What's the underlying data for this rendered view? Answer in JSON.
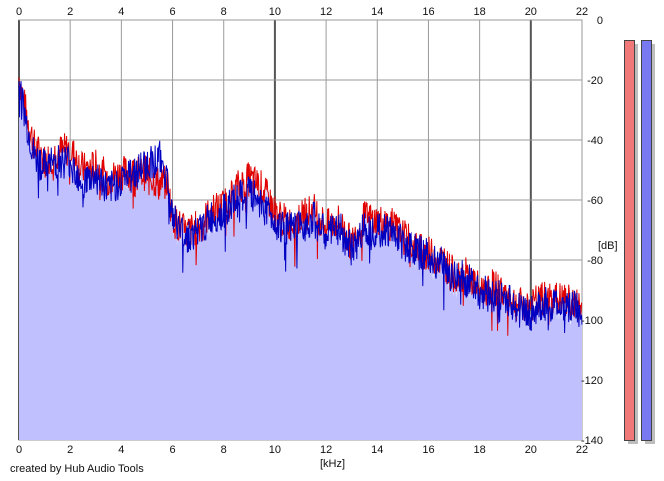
{
  "chart_data": {
    "type": "area",
    "xlabel": "[kHz]",
    "ylabel": "[dB]",
    "xlim": [
      0,
      22
    ],
    "ylim": [
      -140,
      0
    ],
    "x_ticks": [
      "0",
      "2",
      "4",
      "6",
      "8",
      "10",
      "12",
      "14",
      "16",
      "18",
      "20",
      "22"
    ],
    "y_ticks": [
      "0",
      "-20",
      "-40",
      "-60",
      "-80",
      "-100",
      "-120",
      "-140"
    ],
    "grid": true,
    "series": [
      {
        "color": "#e00000",
        "x": [
          0,
          0.3,
          0.6,
          1,
          1.5,
          2,
          2.5,
          3,
          3.5,
          4,
          4.5,
          5,
          5.5,
          5.8,
          6,
          6.5,
          7,
          7.5,
          8,
          8.5,
          9,
          9.5,
          10,
          10.5,
          11,
          11.5,
          12,
          12.5,
          13,
          13.5,
          14,
          14.5,
          15,
          15.5,
          16,
          16.5,
          17,
          17.5,
          18,
          18.5,
          19,
          19.5,
          20,
          20.5,
          21,
          21.5,
          22
        ],
        "values": [
          -19,
          -32,
          -42,
          -47,
          -44,
          -43,
          -50,
          -49,
          -53,
          -51,
          -51,
          -51,
          -55,
          -54,
          -66,
          -71,
          -69,
          -64,
          -62,
          -56,
          -53,
          -56,
          -64,
          -68,
          -66,
          -63,
          -69,
          -67,
          -75,
          -66,
          -67,
          -68,
          -72,
          -76,
          -78,
          -80,
          -85,
          -85,
          -90,
          -89,
          -91,
          -95,
          -95,
          -93,
          -93,
          -94,
          -96
        ]
      },
      {
        "color": "#0000c0",
        "x": [
          0,
          0.3,
          0.6,
          1,
          1.5,
          2,
          2.5,
          3,
          3.5,
          4,
          4.5,
          5,
          5.5,
          5.8,
          6,
          6.5,
          7,
          7.5,
          8,
          8.5,
          9,
          9.5,
          10,
          10.5,
          11,
          11.5,
          12,
          12.5,
          13,
          13.5,
          14,
          14.5,
          15,
          15.5,
          16,
          16.5,
          17,
          17.5,
          18,
          18.5,
          19,
          19.5,
          20,
          20.5,
          21,
          21.5,
          22
        ],
        "values": [
          -21,
          -35,
          -46,
          -49,
          -47,
          -47,
          -54,
          -52,
          -57,
          -53,
          -51,
          -48,
          -46,
          -53,
          -66,
          -72,
          -71,
          -66,
          -64,
          -60,
          -58,
          -61,
          -67,
          -70,
          -69,
          -66,
          -72,
          -69,
          -77,
          -69,
          -70,
          -70,
          -74,
          -77,
          -79,
          -81,
          -86,
          -86,
          -90,
          -92,
          -93,
          -96,
          -98,
          -95,
          -95,
          -95,
          -97
        ]
      }
    ],
    "fill_color": "#c0c0ff",
    "meters": [
      {
        "color": "#f07878",
        "level_db": 0
      },
      {
        "color": "#7878f0",
        "level_db": 0
      }
    ]
  },
  "footer": {
    "credit": "created by Hub Audio Tools"
  }
}
